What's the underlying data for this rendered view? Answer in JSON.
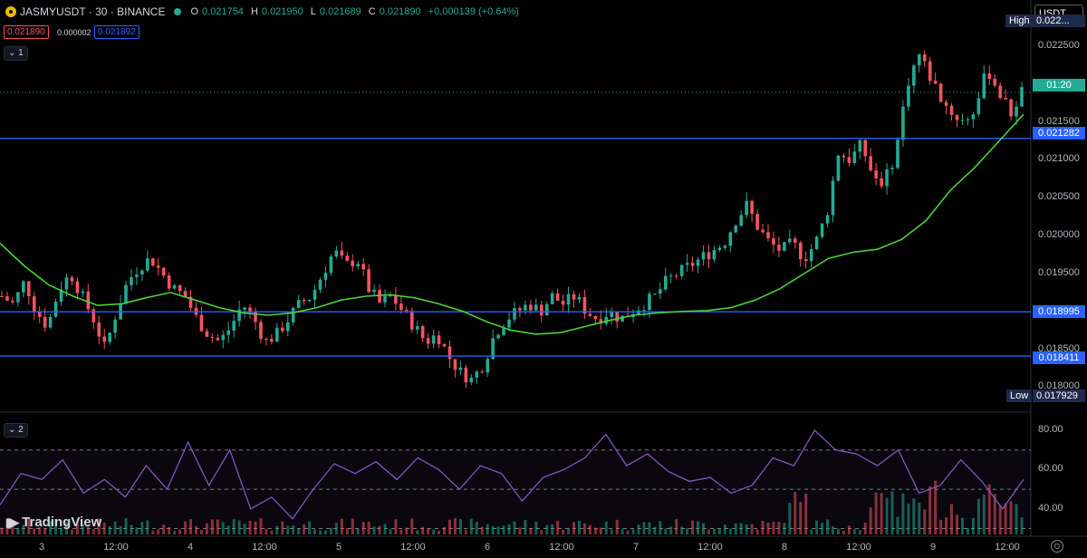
{
  "header": {
    "symbol": "JASMYUSDT",
    "timeframe": "30",
    "exchange": "BINANCE",
    "symbol_line": "JASMYUSDT · 30 · BINANCE",
    "ohlc": {
      "o_label": "O",
      "o": "0.021754",
      "h_label": "H",
      "h": "0.021950",
      "l_label": "L",
      "l": "0.021689",
      "c_label": "C",
      "c": "0.021890",
      "change": "+0.000139 (+0.64%)"
    },
    "bid": "0.021890",
    "spread": "0.000002",
    "ask": "0.021892"
  },
  "panes": {
    "main_index": "1",
    "indicator_index": "2",
    "chevron": "⌄"
  },
  "currency_selector": {
    "value": "USDT"
  },
  "price_axis": {
    "labels": [
      "0.022500",
      "0.022000",
      "0.021500",
      "0.021000",
      "0.020500",
      "0.020000",
      "0.019500",
      "0.019000",
      "0.018500",
      "0.018000"
    ],
    "high_label": "High",
    "high_value": "0.022...",
    "low_label": "Low",
    "low_value": "0.017929",
    "countdown": "01:20",
    "horizontal_lines": [
      "0.021282",
      "0.018995",
      "0.018411"
    ]
  },
  "rsi_axis": {
    "labels": [
      "80.00",
      "60.00",
      "40.00"
    ]
  },
  "time_axis": {
    "labels": [
      "3",
      "12:00",
      "4",
      "12:00",
      "5",
      "12:00",
      "6",
      "12:00",
      "7",
      "12:00",
      "8",
      "12:00",
      "9",
      "12:00"
    ]
  },
  "brand": {
    "name": "TradingView"
  },
  "colors": {
    "up": "#22ab94",
    "down": "#f7525f",
    "ma": "#4cd137",
    "hline": "#2962ff",
    "rsi": "#7e57c2",
    "bg": "#000000"
  },
  "chart_data": {
    "type": "candlestick",
    "ylim": [
      0.01785,
      0.02275
    ],
    "horizontal_lines": [
      0.021282,
      0.018995,
      0.018411
    ],
    "last_price": 0.02189,
    "high": 0.02285,
    "low": 0.017929,
    "series": [
      {
        "name": "price_path",
        "values": [
          0.0192,
          0.0191,
          0.0194,
          0.019,
          0.0188,
          0.0193,
          0.0195,
          0.0192,
          0.0189,
          0.0185,
          0.019,
          0.0194,
          0.0196,
          0.0197,
          0.0195,
          0.0193,
          0.0192,
          0.0189,
          0.0187,
          0.0186,
          0.0188,
          0.0191,
          0.0189,
          0.0186,
          0.0187,
          0.0189,
          0.0191,
          0.0192,
          0.0195,
          0.0198,
          0.0196,
          0.0197,
          0.0193,
          0.0191,
          0.0192,
          0.019,
          0.0188,
          0.0186,
          0.0187,
          0.0184,
          0.0182,
          0.0181,
          0.0183,
          0.0187,
          0.0189,
          0.019,
          0.0191,
          0.019,
          0.0192,
          0.0191,
          0.0192,
          0.019,
          0.0189,
          0.019,
          0.0189,
          0.019,
          0.0191,
          0.0192,
          0.0194,
          0.0195,
          0.0196,
          0.0197,
          0.0198,
          0.0199,
          0.0202,
          0.0204,
          0.0201,
          0.0199,
          0.0198,
          0.0199,
          0.0197,
          0.0199,
          0.0203,
          0.0211,
          0.021,
          0.0212,
          0.0208,
          0.0207,
          0.0211,
          0.022,
          0.0224,
          0.0221,
          0.0218,
          0.0216,
          0.0215,
          0.0217,
          0.0222,
          0.0219,
          0.0216,
          0.0219
        ]
      },
      {
        "name": "moving_average",
        "values": [
          0.0199,
          0.0196,
          0.01935,
          0.0192,
          0.01908,
          0.0191,
          0.01918,
          0.01925,
          0.01915,
          0.01905,
          0.01898,
          0.01895,
          0.01898,
          0.01905,
          0.01915,
          0.0192,
          0.01922,
          0.01918,
          0.0191,
          0.019,
          0.01886,
          0.01875,
          0.0187,
          0.01872,
          0.0188,
          0.01888,
          0.01895,
          0.01898,
          0.019,
          0.01901,
          0.01905,
          0.01915,
          0.0193,
          0.0195,
          0.0197,
          0.01978,
          0.01982,
          0.01995,
          0.0202,
          0.0206,
          0.0209,
          0.02125,
          0.0216
        ]
      },
      {
        "name": "rsi",
        "values": [
          42,
          58,
          55,
          65,
          48,
          55,
          46,
          62,
          50,
          74,
          52,
          70,
          40,
          46,
          35,
          50,
          63,
          58,
          64,
          55,
          66,
          60,
          50,
          62,
          58,
          44,
          56,
          60,
          66,
          78,
          62,
          68,
          59,
          54,
          56,
          48,
          52,
          66,
          62,
          80,
          70,
          68,
          62,
          70,
          48,
          52,
          65,
          54,
          40,
          55
        ]
      }
    ]
  }
}
